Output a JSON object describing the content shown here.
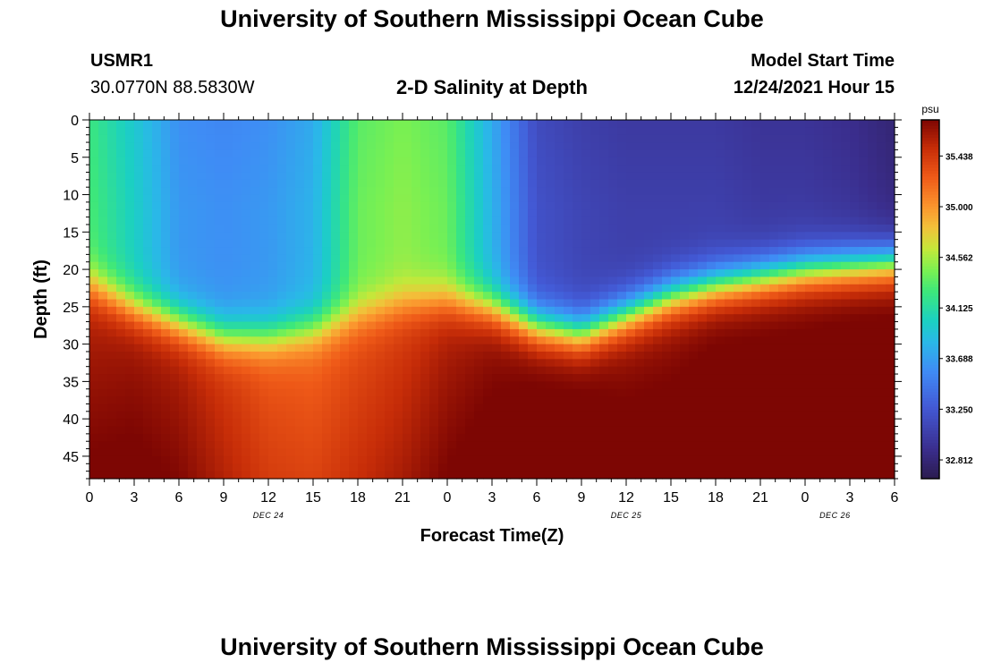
{
  "header": {
    "title": "University of Southern Mississippi Ocean Cube",
    "station": "USMR1",
    "coords": "30.0770N  88.5830W",
    "subtitle": "2-D Salinity at Depth",
    "model_start_label": "Model Start Time",
    "model_start_value": "12/24/2021 Hour 15",
    "footer_title": "University of Southern Mississippi Ocean Cube"
  },
  "chart_data": {
    "type": "heatmap",
    "title": "2-D Salinity at Depth",
    "xlabel": "Forecast Time(Z)",
    "ylabel": "Depth (ft)",
    "x_tick_labels": [
      "0",
      "3",
      "6",
      "9",
      "12",
      "15",
      "18",
      "21",
      "0",
      "3",
      "6",
      "9",
      "12",
      "15",
      "18",
      "21",
      "0",
      "3",
      "6"
    ],
    "x_range_hours": [
      0,
      54
    ],
    "y_ticks": [
      0,
      5,
      10,
      15,
      20,
      25,
      30,
      35,
      40,
      45
    ],
    "y_range": [
      0,
      48
    ],
    "y_inverted": true,
    "date_labels": [
      {
        "label": "DEC 24",
        "hour": 12
      },
      {
        "label": "DEC 25",
        "hour": 36
      },
      {
        "label": "DEC 26",
        "hour": 50
      }
    ],
    "colorbar": {
      "unit": "psu",
      "min": 32.65,
      "max": 35.75,
      "ticks": [
        "35.438",
        "35.000",
        "34.562",
        "34.125",
        "33.688",
        "33.250",
        "32.812"
      ],
      "tick_values": [
        35.438,
        35.0,
        34.562,
        34.125,
        33.688,
        33.25,
        32.812
      ]
    },
    "field": {
      "hours": [
        0,
        3,
        6,
        9,
        12,
        15,
        18,
        21,
        24,
        27,
        30,
        33,
        36,
        39,
        42,
        45,
        48,
        51,
        54
      ],
      "surface_salinity": [
        34.3,
        34.0,
        33.65,
        33.6,
        33.65,
        33.8,
        34.4,
        34.5,
        34.4,
        33.8,
        33.2,
        33.1,
        33.05,
        33.05,
        33.05,
        33.0,
        33.0,
        32.95,
        32.85
      ],
      "halocline_depth_ft": [
        22,
        25,
        27,
        29,
        29,
        28,
        26,
        24.5,
        24,
        25,
        27.5,
        28.5,
        26,
        23.5,
        22,
        21,
        20,
        19.5,
        19
      ],
      "bottom_salinity": [
        35.55,
        35.6,
        35.55,
        35.4,
        35.25,
        35.2,
        35.3,
        35.4,
        35.55,
        35.65,
        35.7,
        35.7,
        35.65,
        35.65,
        35.7,
        35.7,
        35.7,
        35.72,
        35.72
      ]
    }
  }
}
